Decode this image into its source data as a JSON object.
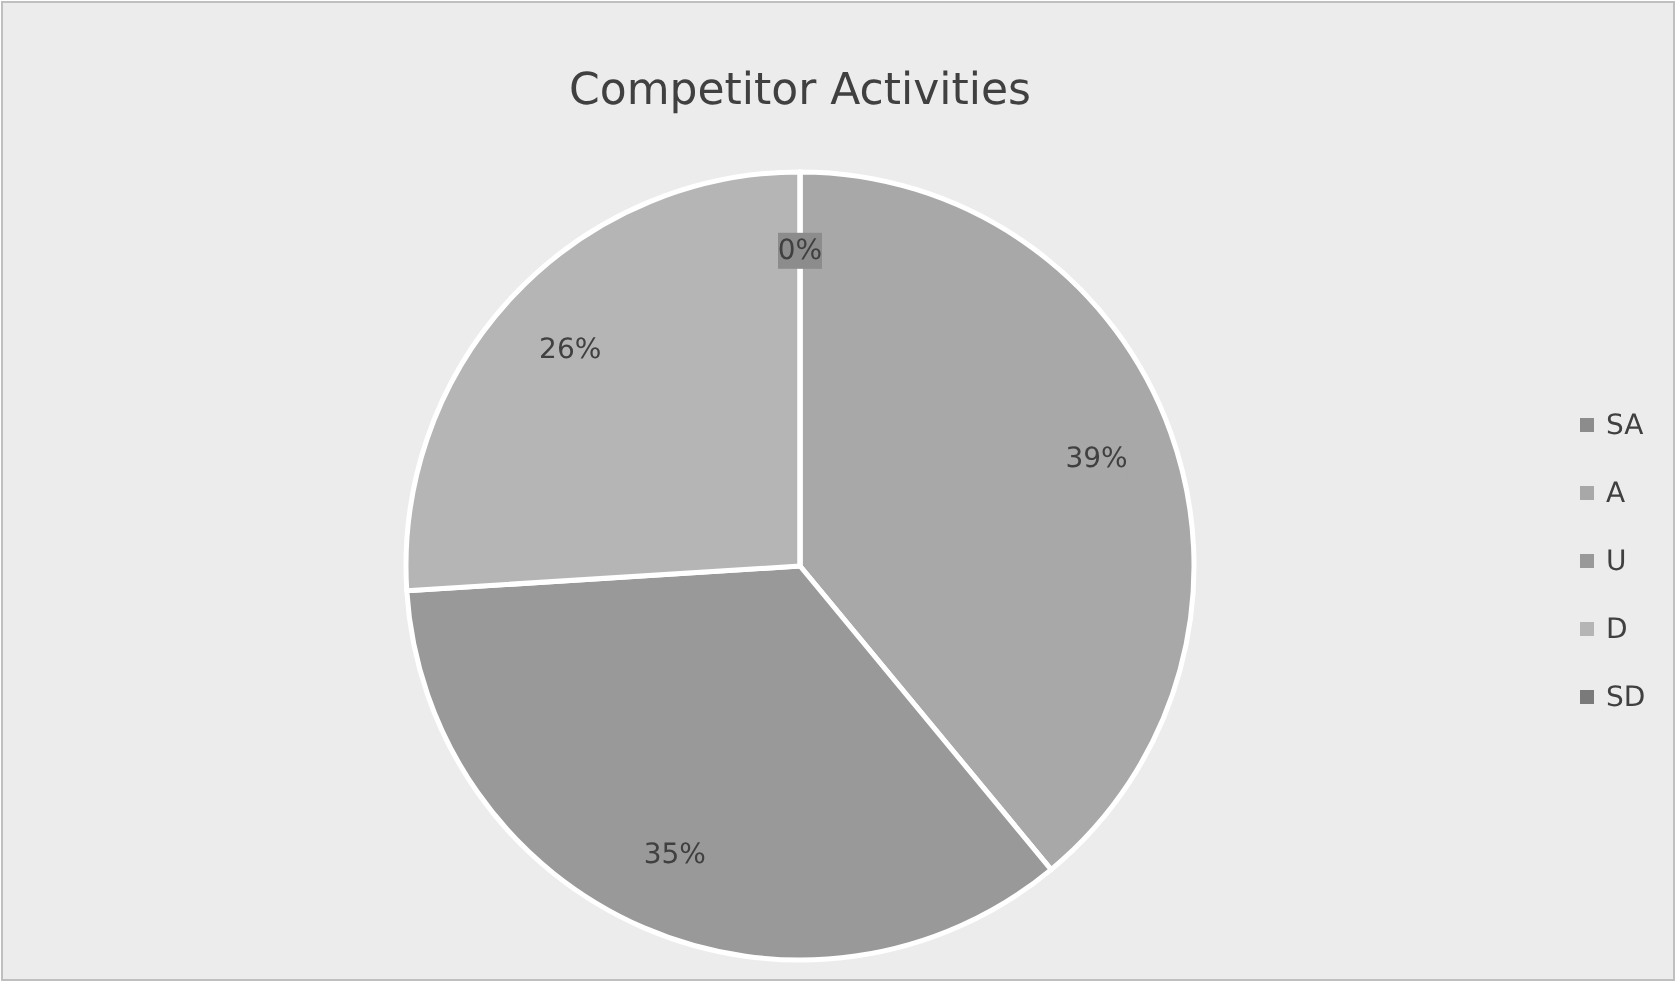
{
  "chart_data": {
    "type": "pie",
    "title": "Competitor Activities",
    "categories": [
      "SA",
      "A",
      "U",
      "D",
      "SD"
    ],
    "values": [
      0,
      39,
      35,
      26,
      0
    ],
    "value_labels": [
      "0%",
      "39%",
      "35%",
      "26%",
      null
    ],
    "colors": [
      "#8c8c8c",
      "#a8a8a8",
      "#999999",
      "#b5b5b5",
      "#7a7a7a"
    ],
    "legend": "right"
  }
}
